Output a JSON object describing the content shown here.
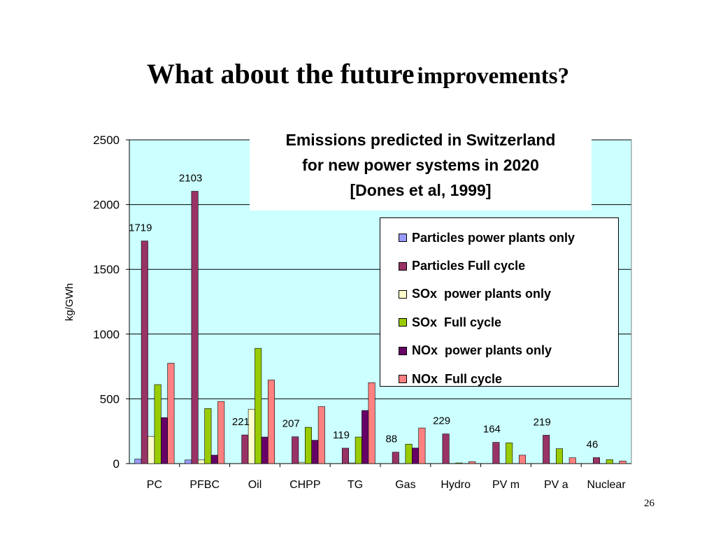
{
  "slide": {
    "title_part1": "What about the future",
    "title_part2": "improvements?",
    "page_number": "26"
  },
  "chart_data": {
    "type": "bar",
    "title_lines": [
      "Emissions predicted in Switzerland",
      "for new power systems in 2020",
      "[Dones et al, 1999]"
    ],
    "ylabel": "kg/GWh",
    "xlabel": "",
    "ylim": [
      0,
      2500
    ],
    "yticks": [
      0,
      500,
      1000,
      1500,
      2000,
      2500
    ],
    "grid": true,
    "legend_position": "right",
    "plot_background": "#CCFFFF",
    "categories": [
      "PC",
      "PFBC",
      "Oil",
      "CHPP",
      "TG",
      "Gas",
      "Hydro",
      "PV m",
      "PV a",
      "Nuclear"
    ],
    "series": [
      {
        "name": "Particles power plants only",
        "color": "#9999FF",
        "values": [
          35,
          28,
          0,
          0,
          0,
          0,
          0,
          0,
          0,
          0
        ]
      },
      {
        "name": "Particles Full cycle",
        "color": "#993366",
        "values": [
          1719,
          2103,
          221,
          207,
          119,
          88,
          229,
          164,
          219,
          46
        ]
      },
      {
        "name": "SOx  power plants only",
        "color": "#FFFFCC",
        "values": [
          210,
          28,
          420,
          10,
          5,
          0,
          0,
          0,
          0,
          0
        ]
      },
      {
        "name": "SOx  Full cycle",
        "color": "#99CC00",
        "values": [
          610,
          425,
          890,
          280,
          205,
          150,
          5,
          160,
          115,
          30
        ]
      },
      {
        "name": "NOx  power plants only",
        "color": "#660066",
        "values": [
          355,
          65,
          205,
          180,
          410,
          120,
          0,
          0,
          0,
          0
        ]
      },
      {
        "name": "NOx  Full cycle",
        "color": "#FF8080",
        "values": [
          775,
          480,
          645,
          440,
          625,
          275,
          15,
          65,
          45,
          20
        ]
      }
    ],
    "data_labels": {
      "series_index": 1,
      "values": [
        "1719",
        "2103",
        "221",
        "207",
        "119",
        "88",
        "229",
        "164",
        "219",
        "46"
      ]
    }
  }
}
